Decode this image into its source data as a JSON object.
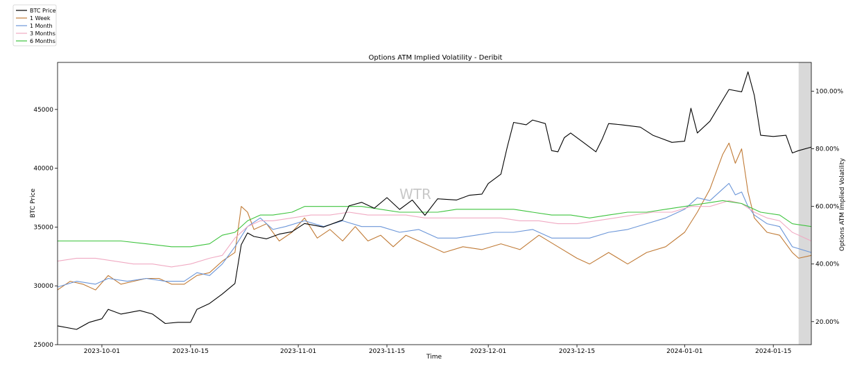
{
  "chart_data": {
    "type": "line",
    "title": "Options ATM Implied Volatility - Deribit",
    "xlabel": "Time",
    "ylabel_left": "BTC Price",
    "ylabel_right": "Options ATM Implied Volatility",
    "watermark": "WTR",
    "x_start": "2023-09-24",
    "x_end": "2024-01-21",
    "x_ticks": [
      "2023-10-01",
      "2023-10-15",
      "2023-11-01",
      "2023-11-15",
      "2023-12-01",
      "2023-12-15",
      "2024-01-01",
      "2024-01-15"
    ],
    "ylim_left": [
      25000,
      49000
    ],
    "yticks_left": [
      25000,
      30000,
      35000,
      40000,
      45000
    ],
    "ylim_right": [
      12,
      110
    ],
    "yticks_right": [
      20,
      40,
      60,
      80,
      100
    ],
    "yticks_right_labels": [
      "20.00%",
      "40.00%",
      "60.00%",
      "80.00%",
      "100.00%"
    ],
    "highlight_range": [
      "2024-01-19",
      "2024-01-21"
    ],
    "grid": false,
    "legend_position": "top-left",
    "series": [
      {
        "name": "BTC Price",
        "axis": "left",
        "color": "#000000",
        "points": [
          [
            "2023-09-24",
            26600
          ],
          [
            "2023-09-27",
            26300
          ],
          [
            "2023-09-29",
            26900
          ],
          [
            "2023-10-01",
            27200
          ],
          [
            "2023-10-02",
            28000
          ],
          [
            "2023-10-04",
            27600
          ],
          [
            "2023-10-07",
            27900
          ],
          [
            "2023-10-09",
            27600
          ],
          [
            "2023-10-11",
            26800
          ],
          [
            "2023-10-13",
            26900
          ],
          [
            "2023-10-15",
            26900
          ],
          [
            "2023-10-16",
            28000
          ],
          [
            "2023-10-18",
            28500
          ],
          [
            "2023-10-20",
            29300
          ],
          [
            "2023-10-22",
            30200
          ],
          [
            "2023-10-23",
            33500
          ],
          [
            "2023-10-24",
            34500
          ],
          [
            "2023-10-25",
            34200
          ],
          [
            "2023-10-27",
            34000
          ],
          [
            "2023-10-29",
            34400
          ],
          [
            "2023-10-31",
            34600
          ],
          [
            "2023-11-02",
            35300
          ],
          [
            "2023-11-05",
            35000
          ],
          [
            "2023-11-08",
            35600
          ],
          [
            "2023-11-09",
            36800
          ],
          [
            "2023-11-11",
            37100
          ],
          [
            "2023-11-13",
            36600
          ],
          [
            "2023-11-15",
            37500
          ],
          [
            "2023-11-17",
            36500
          ],
          [
            "2023-11-19",
            37300
          ],
          [
            "2023-11-21",
            36000
          ],
          [
            "2023-11-23",
            37400
          ],
          [
            "2023-11-26",
            37300
          ],
          [
            "2023-11-28",
            37700
          ],
          [
            "2023-11-30",
            37800
          ],
          [
            "2023-12-01",
            38700
          ],
          [
            "2023-12-03",
            39500
          ],
          [
            "2023-12-04",
            41800
          ],
          [
            "2023-12-05",
            43900
          ],
          [
            "2023-12-07",
            43700
          ],
          [
            "2023-12-08",
            44100
          ],
          [
            "2023-12-10",
            43800
          ],
          [
            "2023-12-11",
            41500
          ],
          [
            "2023-12-12",
            41400
          ],
          [
            "2023-12-13",
            42600
          ],
          [
            "2023-12-14",
            43000
          ],
          [
            "2023-12-16",
            42200
          ],
          [
            "2023-12-18",
            41400
          ],
          [
            "2023-12-19",
            42500
          ],
          [
            "2023-12-20",
            43800
          ],
          [
            "2023-12-22",
            43700
          ],
          [
            "2023-12-25",
            43500
          ],
          [
            "2023-12-27",
            42800
          ],
          [
            "2023-12-28",
            42600
          ],
          [
            "2023-12-30",
            42200
          ],
          [
            "2024-01-01",
            42300
          ],
          [
            "2024-01-02",
            45100
          ],
          [
            "2024-01-03",
            43000
          ],
          [
            "2024-01-05",
            44000
          ],
          [
            "2024-01-08",
            46700
          ],
          [
            "2024-01-10",
            46500
          ],
          [
            "2024-01-11",
            48200
          ],
          [
            "2024-01-12",
            46200
          ],
          [
            "2024-01-13",
            42800
          ],
          [
            "2024-01-15",
            42700
          ],
          [
            "2024-01-17",
            42800
          ],
          [
            "2024-01-18",
            41300
          ],
          [
            "2024-01-19",
            41500
          ],
          [
            "2024-01-21",
            41800
          ]
        ]
      },
      {
        "name": "1 Week",
        "axis": "right",
        "color": "#c07a35",
        "points": [
          [
            "2023-09-24",
            31
          ],
          [
            "2023-09-26",
            34
          ],
          [
            "2023-09-28",
            33
          ],
          [
            "2023-09-30",
            31
          ],
          [
            "2023-10-02",
            36
          ],
          [
            "2023-10-04",
            33
          ],
          [
            "2023-10-06",
            34
          ],
          [
            "2023-10-08",
            35
          ],
          [
            "2023-10-10",
            35
          ],
          [
            "2023-10-12",
            33
          ],
          [
            "2023-10-14",
            33
          ],
          [
            "2023-10-16",
            36
          ],
          [
            "2023-10-18",
            37
          ],
          [
            "2023-10-20",
            41
          ],
          [
            "2023-10-22",
            44
          ],
          [
            "2023-10-23",
            60
          ],
          [
            "2023-10-24",
            58
          ],
          [
            "2023-10-25",
            52
          ],
          [
            "2023-10-27",
            54
          ],
          [
            "2023-10-29",
            48
          ],
          [
            "2023-10-31",
            51
          ],
          [
            "2023-11-02",
            56
          ],
          [
            "2023-11-04",
            49
          ],
          [
            "2023-11-06",
            52
          ],
          [
            "2023-11-08",
            48
          ],
          [
            "2023-11-10",
            53
          ],
          [
            "2023-11-12",
            48
          ],
          [
            "2023-11-14",
            50
          ],
          [
            "2023-11-16",
            46
          ],
          [
            "2023-11-18",
            50
          ],
          [
            "2023-11-21",
            47
          ],
          [
            "2023-11-24",
            44
          ],
          [
            "2023-11-27",
            46
          ],
          [
            "2023-11-30",
            45
          ],
          [
            "2023-12-03",
            47
          ],
          [
            "2023-12-06",
            45
          ],
          [
            "2023-12-09",
            50
          ],
          [
            "2023-12-12",
            46
          ],
          [
            "2023-12-15",
            42
          ],
          [
            "2023-12-17",
            40
          ],
          [
            "2023-12-20",
            44
          ],
          [
            "2023-12-23",
            40
          ],
          [
            "2023-12-26",
            44
          ],
          [
            "2023-12-29",
            46
          ],
          [
            "2024-01-01",
            51
          ],
          [
            "2024-01-03",
            58
          ],
          [
            "2024-01-05",
            66
          ],
          [
            "2024-01-07",
            78
          ],
          [
            "2024-01-08",
            82
          ],
          [
            "2024-01-09",
            75
          ],
          [
            "2024-01-10",
            80
          ],
          [
            "2024-01-11",
            65
          ],
          [
            "2024-01-12",
            56
          ],
          [
            "2024-01-14",
            51
          ],
          [
            "2024-01-16",
            50
          ],
          [
            "2024-01-18",
            44
          ],
          [
            "2024-01-19",
            42
          ],
          [
            "2024-01-21",
            43
          ]
        ]
      },
      {
        "name": "1 Month",
        "axis": "right",
        "color": "#6a95d8",
        "points": [
          [
            "2023-09-24",
            32
          ],
          [
            "2023-09-27",
            34
          ],
          [
            "2023-09-30",
            33
          ],
          [
            "2023-10-02",
            35
          ],
          [
            "2023-10-05",
            34
          ],
          [
            "2023-10-08",
            35
          ],
          [
            "2023-10-11",
            34
          ],
          [
            "2023-10-14",
            34
          ],
          [
            "2023-10-16",
            37
          ],
          [
            "2023-10-18",
            36
          ],
          [
            "2023-10-20",
            40
          ],
          [
            "2023-10-22",
            46
          ],
          [
            "2023-10-24",
            53
          ],
          [
            "2023-10-26",
            56
          ],
          [
            "2023-10-28",
            52
          ],
          [
            "2023-10-30",
            53
          ],
          [
            "2023-11-02",
            55
          ],
          [
            "2023-11-05",
            53
          ],
          [
            "2023-11-08",
            55
          ],
          [
            "2023-11-11",
            53
          ],
          [
            "2023-11-14",
            53
          ],
          [
            "2023-11-17",
            51
          ],
          [
            "2023-11-20",
            52
          ],
          [
            "2023-11-23",
            49
          ],
          [
            "2023-11-26",
            49
          ],
          [
            "2023-11-29",
            50
          ],
          [
            "2023-12-02",
            51
          ],
          [
            "2023-12-05",
            51
          ],
          [
            "2023-12-08",
            52
          ],
          [
            "2023-12-11",
            49
          ],
          [
            "2023-12-14",
            49
          ],
          [
            "2023-12-17",
            49
          ],
          [
            "2023-12-20",
            51
          ],
          [
            "2023-12-23",
            52
          ],
          [
            "2023-12-26",
            54
          ],
          [
            "2023-12-29",
            56
          ],
          [
            "2024-01-01",
            59
          ],
          [
            "2024-01-03",
            63
          ],
          [
            "2024-01-05",
            62
          ],
          [
            "2024-01-07",
            66
          ],
          [
            "2024-01-08",
            68
          ],
          [
            "2024-01-09",
            64
          ],
          [
            "2024-01-10",
            65
          ],
          [
            "2024-01-11",
            60
          ],
          [
            "2024-01-12",
            57
          ],
          [
            "2024-01-14",
            54
          ],
          [
            "2024-01-16",
            53
          ],
          [
            "2024-01-18",
            46
          ],
          [
            "2024-01-21",
            44
          ]
        ]
      },
      {
        "name": "3 Months",
        "axis": "right",
        "color": "#f0a9c2",
        "points": [
          [
            "2023-09-24",
            41
          ],
          [
            "2023-09-27",
            42
          ],
          [
            "2023-09-30",
            42
          ],
          [
            "2023-10-03",
            41
          ],
          [
            "2023-10-06",
            40
          ],
          [
            "2023-10-09",
            40
          ],
          [
            "2023-10-12",
            39
          ],
          [
            "2023-10-15",
            40
          ],
          [
            "2023-10-18",
            42
          ],
          [
            "2023-10-20",
            43
          ],
          [
            "2023-10-22",
            49
          ],
          [
            "2023-10-24",
            53
          ],
          [
            "2023-10-26",
            55
          ],
          [
            "2023-10-28",
            55
          ],
          [
            "2023-10-31",
            56
          ],
          [
            "2023-11-03",
            57
          ],
          [
            "2023-11-06",
            57
          ],
          [
            "2023-11-09",
            58
          ],
          [
            "2023-11-12",
            57
          ],
          [
            "2023-11-15",
            57
          ],
          [
            "2023-11-18",
            57
          ],
          [
            "2023-11-21",
            56
          ],
          [
            "2023-11-24",
            56
          ],
          [
            "2023-11-27",
            56
          ],
          [
            "2023-11-30",
            56
          ],
          [
            "2023-12-03",
            56
          ],
          [
            "2023-12-06",
            55
          ],
          [
            "2023-12-09",
            55
          ],
          [
            "2023-12-12",
            54
          ],
          [
            "2023-12-15",
            54
          ],
          [
            "2023-12-18",
            55
          ],
          [
            "2023-12-21",
            56
          ],
          [
            "2023-12-24",
            57
          ],
          [
            "2023-12-27",
            58
          ],
          [
            "2023-12-30",
            58
          ],
          [
            "2024-01-02",
            60
          ],
          [
            "2024-01-05",
            60
          ],
          [
            "2024-01-08",
            62
          ],
          [
            "2024-01-10",
            61
          ],
          [
            "2024-01-12",
            58
          ],
          [
            "2024-01-14",
            56
          ],
          [
            "2024-01-16",
            55
          ],
          [
            "2024-01-18",
            51
          ],
          [
            "2024-01-21",
            48
          ]
        ]
      },
      {
        "name": "6 Months",
        "axis": "right",
        "color": "#3cc33c",
        "points": [
          [
            "2023-09-24",
            48
          ],
          [
            "2023-09-28",
            48
          ],
          [
            "2023-10-01",
            48
          ],
          [
            "2023-10-04",
            48
          ],
          [
            "2023-10-08",
            47
          ],
          [
            "2023-10-12",
            46
          ],
          [
            "2023-10-15",
            46
          ],
          [
            "2023-10-18",
            47
          ],
          [
            "2023-10-20",
            50
          ],
          [
            "2023-10-22",
            51
          ],
          [
            "2023-10-24",
            55
          ],
          [
            "2023-10-26",
            57
          ],
          [
            "2023-10-28",
            57
          ],
          [
            "2023-10-31",
            58
          ],
          [
            "2023-11-02",
            60
          ],
          [
            "2023-11-05",
            60
          ],
          [
            "2023-11-08",
            60
          ],
          [
            "2023-11-11",
            60
          ],
          [
            "2023-11-14",
            59
          ],
          [
            "2023-11-17",
            58
          ],
          [
            "2023-11-20",
            58
          ],
          [
            "2023-11-23",
            58
          ],
          [
            "2023-11-26",
            59
          ],
          [
            "2023-11-29",
            59
          ],
          [
            "2023-12-02",
            59
          ],
          [
            "2023-12-05",
            59
          ],
          [
            "2023-12-08",
            58
          ],
          [
            "2023-12-11",
            57
          ],
          [
            "2023-12-14",
            57
          ],
          [
            "2023-12-17",
            56
          ],
          [
            "2023-12-20",
            57
          ],
          [
            "2023-12-23",
            58
          ],
          [
            "2023-12-26",
            58
          ],
          [
            "2023-12-29",
            59
          ],
          [
            "2024-01-01",
            60
          ],
          [
            "2024-01-04",
            61
          ],
          [
            "2024-01-07",
            62
          ],
          [
            "2024-01-10",
            61
          ],
          [
            "2024-01-13",
            58
          ],
          [
            "2024-01-16",
            57
          ],
          [
            "2024-01-18",
            54
          ],
          [
            "2024-01-21",
            53
          ]
        ]
      }
    ]
  }
}
